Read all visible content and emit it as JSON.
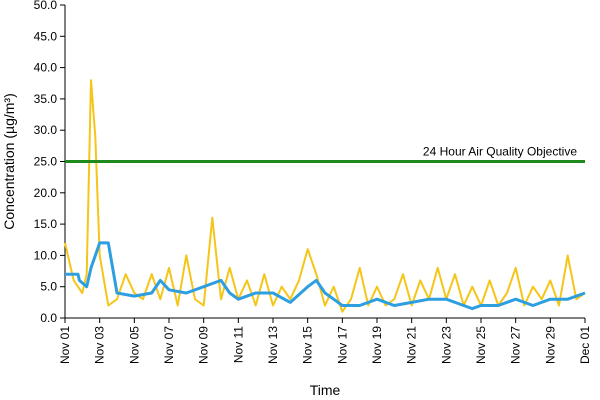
{
  "chart_data": {
    "type": "line",
    "xlabel": "Time",
    "ylabel": "Concentration (µg/m³)",
    "ylim": [
      0,
      50
    ],
    "y_ticks": [
      "0.0",
      "5.0",
      "10.0",
      "15.0",
      "20.0",
      "25.0",
      "30.0",
      "35.0",
      "40.0",
      "45.0",
      "50.0"
    ],
    "x_range": [
      "Nov 01",
      "Dec 01"
    ],
    "x_ticks": [
      "Nov 01",
      "Nov 03",
      "Nov 05",
      "Nov 07",
      "Nov 09",
      "Nov 11",
      "Nov 13",
      "Nov 15",
      "Nov 17",
      "Nov 19",
      "Nov 21",
      "Nov 23",
      "Nov 25",
      "Nov 27",
      "Nov 29",
      "Dec 01"
    ],
    "grid": false,
    "series": [
      {
        "color": "#f5c518",
        "x": [
          "Nov 01",
          "Nov 01 12:00",
          "Nov 02",
          "Nov 02 06:00",
          "Nov 02 12:00",
          "Nov 02 18:00",
          "Nov 03",
          "Nov 03 12:00",
          "Nov 04",
          "Nov 04 12:00",
          "Nov 05",
          "Nov 05 12:00",
          "Nov 06",
          "Nov 06 12:00",
          "Nov 07",
          "Nov 07 12:00",
          "Nov 08",
          "Nov 08 12:00",
          "Nov 09",
          "Nov 09 12:00",
          "Nov 10",
          "Nov 10 12:00",
          "Nov 11",
          "Nov 11 12:00",
          "Nov 12",
          "Nov 12 12:00",
          "Nov 13",
          "Nov 13 12:00",
          "Nov 14",
          "Nov 14 12:00",
          "Nov 15",
          "Nov 15 12:00",
          "Nov 16",
          "Nov 16 12:00",
          "Nov 17",
          "Nov 17 12:00",
          "Nov 18",
          "Nov 18 12:00",
          "Nov 19",
          "Nov 19 12:00",
          "Nov 20",
          "Nov 20 12:00",
          "Nov 21",
          "Nov 21 12:00",
          "Nov 22",
          "Nov 22 12:00",
          "Nov 23",
          "Nov 23 12:00",
          "Nov 24",
          "Nov 24 12:00",
          "Nov 25",
          "Nov 25 12:00",
          "Nov 26",
          "Nov 26 12:00",
          "Nov 27",
          "Nov 27 12:00",
          "Nov 28",
          "Nov 28 12:00",
          "Nov 29",
          "Nov 29 12:00",
          "Nov 30",
          "Nov 30 12:00",
          "Dec 01"
        ],
        "values": [
          12,
          6,
          4,
          7,
          38,
          29,
          10,
          2,
          3,
          7,
          4,
          3,
          7,
          3,
          8,
          2,
          10,
          3,
          2,
          16,
          3,
          8,
          3,
          6,
          2,
          7,
          2,
          5,
          3,
          6,
          11,
          7,
          2,
          5,
          1,
          3,
          8,
          2,
          5,
          2,
          3,
          7,
          2,
          6,
          3,
          8,
          3,
          7,
          2,
          5,
          2,
          6,
          2,
          4,
          8,
          2,
          5,
          3,
          6,
          2,
          10,
          3,
          4
        ]
      },
      {
        "color": "#2d9fe0",
        "x": [
          "Nov 01",
          "Nov 01 18:00",
          "Nov 01 20:00",
          "Nov 02 06:00",
          "Nov 02 12:00",
          "Nov 03",
          "Nov 03 12:00",
          "Nov 04",
          "Nov 05",
          "Nov 06",
          "Nov 06 12:00",
          "Nov 07",
          "Nov 08",
          "Nov 09",
          "Nov 10",
          "Nov 10 12:00",
          "Nov 11",
          "Nov 12",
          "Nov 13",
          "Nov 14",
          "Nov 15",
          "Nov 15 12:00",
          "Nov 16",
          "Nov 16 12:00",
          "Nov 17",
          "Nov 18",
          "Nov 19",
          "Nov 20",
          "Nov 21",
          "Nov 22",
          "Nov 23",
          "Nov 24",
          "Nov 24 12:00",
          "Nov 25",
          "Nov 26",
          "Nov 27",
          "Nov 28",
          "Nov 29",
          "Nov 30",
          "Dec 01"
        ],
        "values": [
          7,
          7,
          6,
          5,
          8,
          12,
          12,
          4,
          3.5,
          4,
          6,
          4.5,
          4,
          5,
          6,
          4,
          3,
          4,
          4,
          2.5,
          5,
          6,
          4,
          3,
          2,
          2,
          3,
          2,
          2.5,
          3,
          3,
          2,
          1.5,
          2,
          2,
          3,
          2,
          3,
          3,
          4
        ]
      }
    ],
    "reference_line": {
      "value": 25,
      "label": "24 Hour Air Quality Objective",
      "color": "#1e8a1e"
    }
  }
}
